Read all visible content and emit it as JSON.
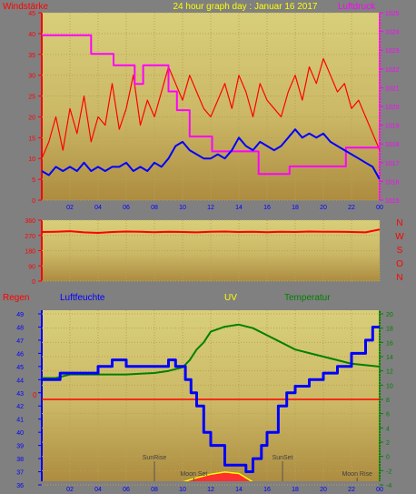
{
  "header": {
    "title": "24 hour graph day : Januar 16 2017",
    "left_label": "Windstärke",
    "right_label": "Luftdruck"
  },
  "direction_letters": [
    "N",
    "W",
    "S",
    "O",
    "N"
  ],
  "bottom_header": {
    "regen": "Regen",
    "luftfeuchte": "Luftfeuchte",
    "uv": "UV",
    "temperatur": "Temperatur"
  },
  "colors": {
    "panel_top": "#d8cf7a",
    "panel_bottom": "#ad8c40",
    "wind_gust": "#ff0000",
    "wind_avg": "#0000ff",
    "pressure": "#ff00ff",
    "direction": "#ff0000",
    "humidity": "#0000ff",
    "temperature": "#008000",
    "rain": "#ff0000",
    "uv_fill": "#ff3030",
    "uv_outline": "#ffff00",
    "title_yellow": "#ffff00",
    "label_red": "#ff0000",
    "label_blue": "#0000ff",
    "label_green": "#008000",
    "label_magenta": "#ff00ff"
  },
  "chart_data": [
    {
      "type": "line",
      "name_key": "wind_pressure",
      "x_ticks": [
        "02",
        "04",
        "06",
        "08",
        "10",
        "12",
        "14",
        "16",
        "18",
        "20",
        "22",
        "00"
      ],
      "y_left_ticks": [
        "0",
        "5",
        "10",
        "15",
        "20",
        "25",
        "30",
        "35",
        "40",
        "45"
      ],
      "y_left_range": [
        0,
        45
      ],
      "y_right_ticks": [
        "1015",
        "1016",
        "1017",
        "1018",
        "1019",
        "1020",
        "1021",
        "1022",
        "1023",
        "1024",
        "1025"
      ],
      "y_right_range": [
        1015,
        1025
      ],
      "x_range_hours": [
        0,
        24
      ],
      "series": [
        {
          "key": "gust",
          "axis": "left",
          "x": [
            0,
            0.5,
            1,
            1.5,
            2,
            2.5,
            3,
            3.5,
            4,
            4.5,
            5,
            5.5,
            6,
            6.5,
            7,
            7.5,
            8,
            8.5,
            9,
            9.5,
            10,
            10.5,
            11,
            11.5,
            12,
            12.5,
            13,
            13.5,
            14,
            14.5,
            15,
            15.5,
            16,
            16.5,
            17,
            17.5,
            18,
            18.5,
            19,
            19.5,
            20,
            20.5,
            21,
            21.5,
            22,
            22.5,
            23,
            23.5,
            24
          ],
          "values": [
            10,
            14,
            20,
            12,
            22,
            16,
            25,
            14,
            20,
            18,
            28,
            17,
            22,
            30,
            18,
            24,
            20,
            26,
            32,
            28,
            24,
            30,
            26,
            22,
            20,
            24,
            28,
            22,
            30,
            26,
            20,
            28,
            24,
            22,
            20,
            26,
            30,
            24,
            32,
            28,
            34,
            30,
            26,
            28,
            22,
            24,
            20,
            16,
            12
          ]
        },
        {
          "key": "avg",
          "axis": "left",
          "x": [
            0,
            0.5,
            1,
            1.5,
            2,
            2.5,
            3,
            3.5,
            4,
            4.5,
            5,
            5.5,
            6,
            6.5,
            7,
            7.5,
            8,
            8.5,
            9,
            9.5,
            10,
            10.5,
            11,
            11.5,
            12,
            12.5,
            13,
            13.5,
            14,
            14.5,
            15,
            15.5,
            16,
            16.5,
            17,
            17.5,
            18,
            18.5,
            19,
            19.5,
            20,
            20.5,
            21,
            21.5,
            22,
            22.5,
            23,
            23.5,
            24
          ],
          "values": [
            7,
            6,
            8,
            7,
            8,
            7,
            9,
            7,
            8,
            7,
            8,
            8,
            9,
            7,
            8,
            7,
            9,
            8,
            10,
            13,
            14,
            12,
            11,
            10,
            10,
            11,
            10,
            12,
            15,
            13,
            12,
            14,
            13,
            12,
            13,
            15,
            17,
            15,
            16,
            15,
            16,
            14,
            13,
            12,
            11,
            10,
            9,
            8,
            5
          ]
        },
        {
          "key": "pressure",
          "axis": "right",
          "x": [
            0,
            3.5,
            3.5,
            5.1,
            5.1,
            6.6,
            6.6,
            7.2,
            7.2,
            9.0,
            9.0,
            9.6,
            9.6,
            10.5,
            10.5,
            12.1,
            12.1,
            15.4,
            15.4,
            17.6,
            17.6,
            21.6,
            21.6,
            24
          ],
          "values": [
            1023.8,
            1023.8,
            1022.8,
            1022.8,
            1022.2,
            1022.2,
            1021.2,
            1021.2,
            1022.2,
            1022.2,
            1020.8,
            1020.8,
            1019.8,
            1019.8,
            1018.4,
            1018.4,
            1017.6,
            1017.6,
            1016.4,
            1016.4,
            1016.8,
            1016.8,
            1017.8,
            1017.8
          ]
        }
      ]
    },
    {
      "type": "line",
      "name_key": "wind_direction",
      "y_ticks": [
        "0",
        "90",
        "180",
        "270",
        "360"
      ],
      "y_range": [
        0,
        360
      ],
      "series": [
        {
          "key": "direction",
          "x": [
            0,
            1,
            2,
            3,
            4,
            5,
            6,
            7,
            8,
            9,
            10,
            11,
            12,
            13,
            14,
            15,
            16,
            17,
            18,
            19,
            20,
            21,
            22,
            23,
            24
          ],
          "values": [
            290,
            292,
            295,
            288,
            285,
            290,
            293,
            291,
            289,
            292,
            290,
            288,
            291,
            293,
            290,
            292,
            289,
            291,
            290,
            293,
            291,
            292,
            290,
            288,
            305
          ]
        }
      ]
    },
    {
      "type": "line",
      "name_key": "humidity_temperature",
      "x_ticks": [
        "02",
        "04",
        "06",
        "08",
        "10",
        "12",
        "14",
        "16",
        "18",
        "20",
        "22",
        "00"
      ],
      "y_left_ticks": [
        "36",
        "37",
        "38",
        "39",
        "40",
        "41",
        "42",
        "43",
        "44",
        "45",
        "46",
        "47",
        "48",
        "49"
      ],
      "y_left_range": [
        36,
        49
      ],
      "y_right_ticks": [
        "-4",
        "-2",
        "0",
        "2",
        "4",
        "6",
        "8",
        "10",
        "12",
        "14",
        "16",
        "18",
        "20"
      ],
      "y_right_range": [
        -4,
        20
      ],
      "rain_zero_label": "0",
      "annotations": [
        "SunRise",
        "SunSet",
        "Moon Set",
        "Moon Rise"
      ],
      "series": [
        {
          "key": "humidity",
          "axis": "left",
          "x": [
            0,
            1.3,
            1.3,
            4,
            4,
            5,
            5,
            6,
            6,
            7,
            7,
            9,
            9,
            9.5,
            9.5,
            10.2,
            10.2,
            10.6,
            10.6,
            11,
            11,
            11.5,
            11.5,
            12,
            12,
            13,
            13,
            14.5,
            14.5,
            15,
            15,
            15.6,
            15.6,
            16,
            16,
            16.8,
            16.8,
            17.4,
            17.4,
            18,
            18,
            19,
            19,
            20,
            20,
            21,
            21,
            22,
            22,
            23,
            23,
            23.5,
            23.5,
            24
          ],
          "values": [
            44,
            44,
            44.5,
            44.5,
            45,
            45,
            45.5,
            45.5,
            45,
            45,
            45,
            45,
            45.5,
            45.5,
            45,
            45,
            44,
            44,
            43,
            43,
            42,
            42,
            40,
            40,
            39,
            39,
            37.5,
            37.5,
            37,
            37,
            38,
            38,
            39,
            39,
            40,
            40,
            42,
            42,
            43,
            43,
            43.5,
            43.5,
            44,
            44,
            44.5,
            44.5,
            45,
            45,
            46,
            46,
            47,
            47,
            48,
            48
          ]
        },
        {
          "key": "temperature",
          "axis": "right",
          "x": [
            0,
            1,
            2,
            3,
            4,
            5,
            6,
            7,
            8,
            9,
            10,
            10.5,
            11,
            11.5,
            12,
            13,
            14,
            15,
            16,
            17,
            18,
            19,
            20,
            21,
            22,
            23,
            24
          ],
          "values": [
            11,
            11,
            11.5,
            11.5,
            11.5,
            11.5,
            11.5,
            11.6,
            11.7,
            12,
            12.5,
            13.5,
            15,
            16,
            17.5,
            18.2,
            18.5,
            18,
            17,
            16,
            15,
            14.5,
            14,
            13.5,
            13,
            12.8,
            12.6
          ]
        },
        {
          "key": "uv",
          "axis": "right",
          "x": [
            9.5,
            10,
            11,
            12,
            13,
            14,
            14.5,
            15,
            15.5
          ],
          "values": [
            -4,
            -3.6,
            -3.0,
            -2.5,
            -2.2,
            -2.4,
            -3.0,
            -3.6,
            -4
          ]
        }
      ]
    }
  ]
}
